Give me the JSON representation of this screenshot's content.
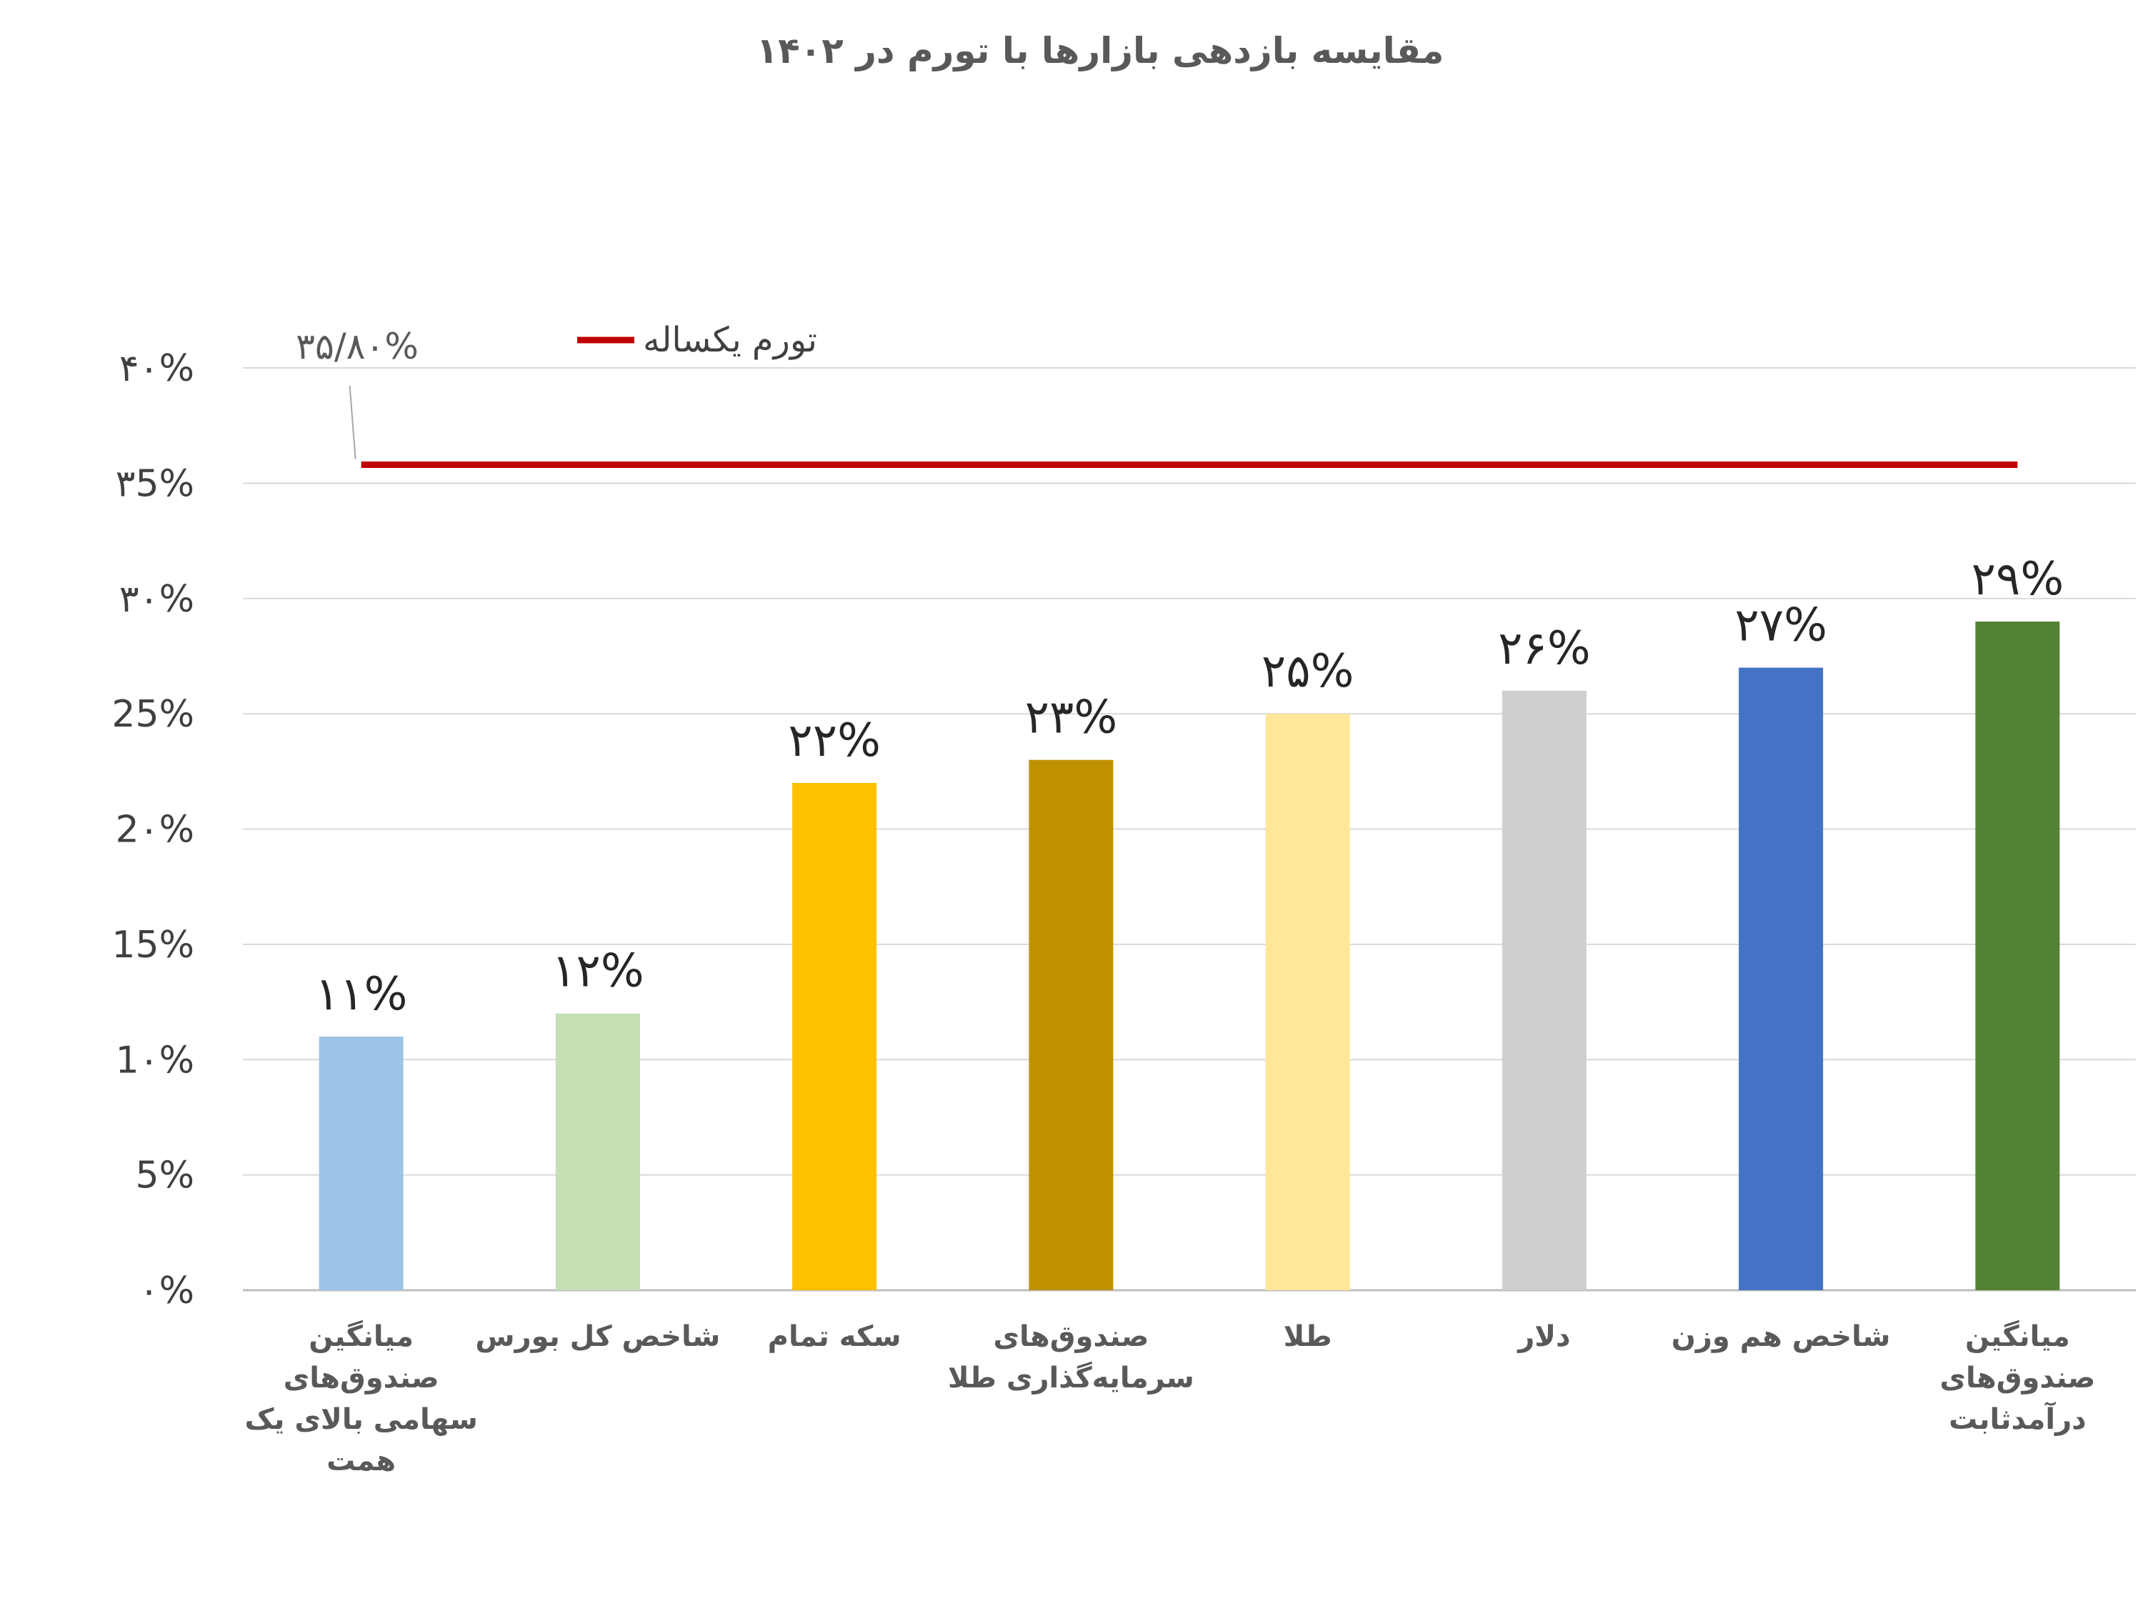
{
  "chart_data": {
    "type": "bar",
    "title": "مقایسه بازدهی بازارها با تورم در ۱۴۰۲",
    "xlabel": "",
    "ylabel": "",
    "ylim": [
      0,
      40
    ],
    "y_ticks": [
      {
        "value": 0,
        "label": "۰%"
      },
      {
        "value": 5,
        "label": "5%"
      },
      {
        "value": 10,
        "label": "1۰%"
      },
      {
        "value": 15,
        "label": "15%"
      },
      {
        "value": 20,
        "label": "2۰%"
      },
      {
        "value": 25,
        "label": "25%"
      },
      {
        "value": 30,
        "label": "۳۰%"
      },
      {
        "value": 35,
        "label": "۳5%"
      },
      {
        "value": 40,
        "label": "۴۰%"
      }
    ],
    "grid": true,
    "categories": [
      [
        "میانگین",
        "صندوق‌های",
        "سهامی بالای یک",
        "همت"
      ],
      [
        "شاخص کل بورس"
      ],
      [
        "سکه تمام"
      ],
      [
        "صندوق‌های",
        "سرمایه‌گذاری طلا"
      ],
      [
        "طلا"
      ],
      [
        "دلار"
      ],
      [
        "شاخص هم وزن"
      ],
      [
        "میانگین",
        "صندوق‌های",
        "درآمدثابت"
      ]
    ],
    "values": [
      11,
      12,
      22,
      23,
      25,
      26,
      27,
      29
    ],
    "data_labels": [
      "۱۱%",
      "۱۲%",
      "۲۲%",
      "۲۳%",
      "۲۵%",
      "۲۶%",
      "۲۷%",
      "۲۹%"
    ],
    "colors": [
      "#9DC3E6",
      "#C5E0B4",
      "#FFC000",
      "#BF9000",
      "#FFE699",
      "#D0CECE",
      "#4472C4",
      "#548235"
    ],
    "line_series": {
      "name": "تورم یکساله",
      "value": 35.8,
      "label": "۳۵/۸۰%",
      "color": "#C00000"
    },
    "legend_placement": "top-center"
  }
}
